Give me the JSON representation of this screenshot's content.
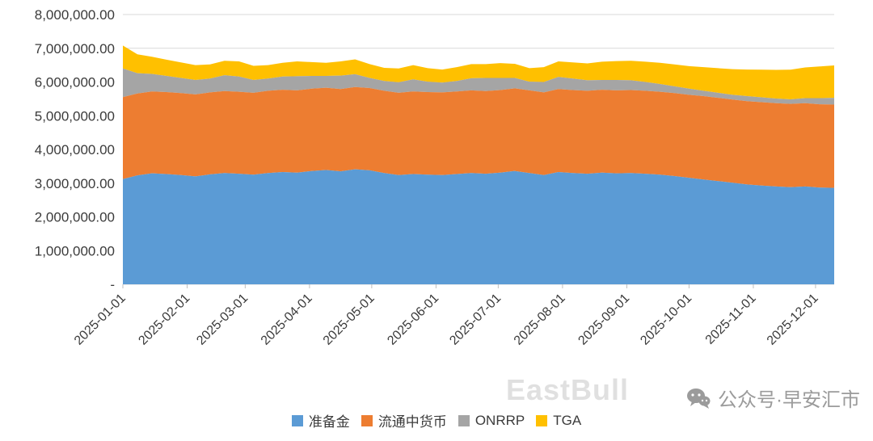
{
  "chart_data": {
    "type": "area",
    "stacked": true,
    "title": "",
    "xlabel": "",
    "ylabel": "",
    "grid": true,
    "legend_position": "bottom",
    "ylim": [
      0,
      8000000
    ],
    "y_tick_step": 1000000,
    "y_tick_labels": [
      "-",
      "1,000,000.00",
      "2,000,000.00",
      "3,000,000.00",
      "4,000,000.00",
      "5,000,000.00",
      "6,000,000.00",
      "7,000,000.00",
      "8,000,000.00"
    ],
    "x_labels": [
      "2025-01-01",
      "2025-02-01",
      "2025-03-01",
      "2025-04-01",
      "2025-05-01",
      "2025-06-01",
      "2025-07-01",
      "2025-08-01",
      "2025-09-01",
      "2025-10-01",
      "2025-11-01",
      "2025-12-01"
    ],
    "x_label_day_offsets": [
      0,
      31,
      59,
      90,
      120,
      151,
      181,
      212,
      243,
      273,
      304,
      334
    ],
    "x_total_days": 343,
    "points_day_step": 7,
    "series": [
      {
        "name": "准备金",
        "color": "#5B9BD5",
        "values": [
          3120000,
          3230000,
          3290000,
          3270000,
          3240000,
          3200000,
          3260000,
          3300000,
          3280000,
          3250000,
          3300000,
          3330000,
          3310000,
          3360000,
          3390000,
          3350000,
          3410000,
          3380000,
          3300000,
          3240000,
          3270000,
          3250000,
          3240000,
          3270000,
          3300000,
          3280000,
          3310000,
          3360000,
          3300000,
          3240000,
          3330000,
          3300000,
          3280000,
          3310000,
          3290000,
          3300000,
          3280000,
          3250000,
          3210000,
          3160000,
          3110000,
          3060000,
          3010000,
          2960000,
          2930000,
          2900000,
          2880000,
          2900000,
          2870000,
          2860000
        ]
      },
      {
        "name": "流通中货币",
        "color": "#ED7D31",
        "values": [
          2430000,
          2430000,
          2430000,
          2430000,
          2430000,
          2430000,
          2430000,
          2430000,
          2430000,
          2430000,
          2440000,
          2440000,
          2440000,
          2440000,
          2440000,
          2440000,
          2440000,
          2440000,
          2440000,
          2440000,
          2450000,
          2450000,
          2450000,
          2450000,
          2450000,
          2450000,
          2450000,
          2450000,
          2450000,
          2450000,
          2460000,
          2460000,
          2460000,
          2460000,
          2460000,
          2460000,
          2460000,
          2460000,
          2460000,
          2460000,
          2470000,
          2470000,
          2470000,
          2470000,
          2470000,
          2470000,
          2470000,
          2470000,
          2470000,
          2470000
        ]
      },
      {
        "name": "ONRRP",
        "color": "#A5A5A5",
        "values": [
          850000,
          600000,
          520000,
          480000,
          450000,
          430000,
          410000,
          470000,
          450000,
          380000,
          360000,
          390000,
          420000,
          380000,
          350000,
          400000,
          380000,
          300000,
          290000,
          310000,
          360000,
          310000,
          290000,
          310000,
          360000,
          390000,
          360000,
          310000,
          260000,
          310000,
          360000,
          340000,
          310000,
          290000,
          310000,
          290000,
          260000,
          230000,
          200000,
          180000,
          160000,
          150000,
          140000,
          150000,
          145000,
          140000,
          135000,
          150000,
          180000,
          200000
        ]
      },
      {
        "name": "TGA",
        "color": "#FFC000",
        "values": [
          680000,
          560000,
          510000,
          480000,
          460000,
          440000,
          420000,
          430000,
          450000,
          420000,
          400000,
          410000,
          440000,
          410000,
          390000,
          420000,
          440000,
          410000,
          390000,
          410000,
          420000,
          400000,
          390000,
          410000,
          420000,
          410000,
          440000,
          420000,
          400000,
          440000,
          460000,
          480000,
          500000,
          540000,
          560000,
          580000,
          600000,
          630000,
          650000,
          670000,
          700000,
          730000,
          760000,
          790000,
          820000,
          850000,
          880000,
          910000,
          940000,
          960000
        ]
      }
    ]
  },
  "watermark": {
    "brand": "EastBull",
    "account": "公众号·早安汇市"
  },
  "colors": {
    "background": "#FFFFFF",
    "grid": "#D9D9D9",
    "tick": "#BFBFBF",
    "axis_text": "#3B3B3B"
  }
}
